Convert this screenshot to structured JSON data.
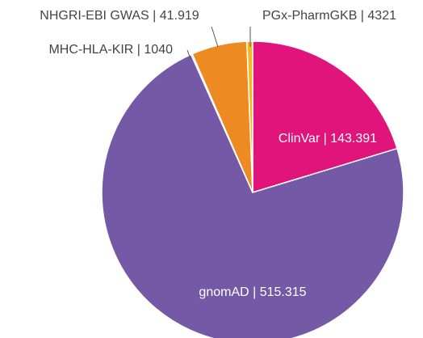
{
  "chart_data": {
    "type": "pie",
    "categories": [
      "ClinVar",
      "gnomAD",
      "MHC-HLA-KIR",
      "NHGRI-EBI GWAS",
      "PGx-PharmGKB"
    ],
    "values": [
      143391,
      515315,
      1040,
      41919,
      4321
    ],
    "value_labels": [
      "143.391",
      "515.315",
      "1040",
      "41.919",
      "4321"
    ],
    "label_separator": " | ",
    "colors": [
      "#e0147a",
      "#745aa6",
      "#2f6fb3",
      "#ee8a22",
      "#f6b821"
    ]
  }
}
